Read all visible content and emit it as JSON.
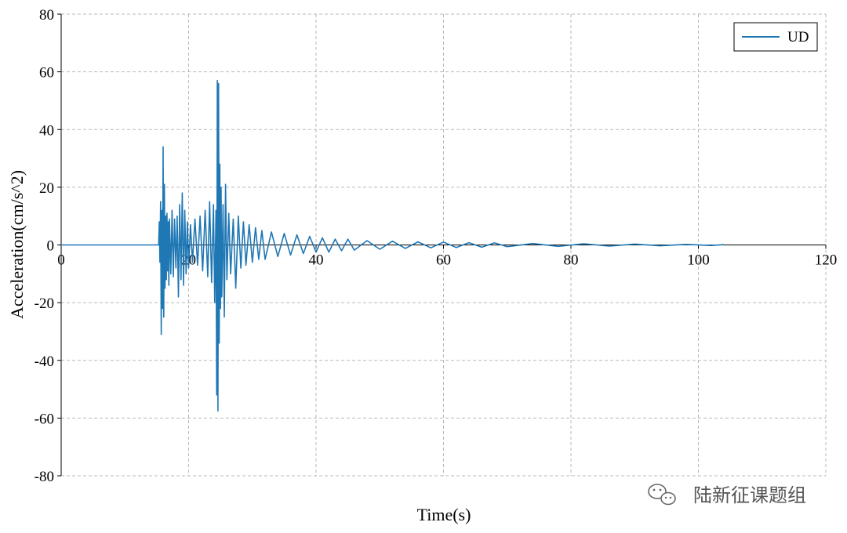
{
  "chart_data": {
    "type": "line",
    "title": "",
    "xlabel": "Time(s)",
    "ylabel": "Acceleration(cm/s^2)",
    "xlim": [
      0,
      120
    ],
    "ylim": [
      -80,
      80
    ],
    "xticks": [
      "0",
      "20",
      "40",
      "60",
      "80",
      "100",
      "120"
    ],
    "yticks": [
      "80",
      "60",
      "40",
      "20",
      "0",
      "-20",
      "-40",
      "-60",
      "-80"
    ],
    "grid": true,
    "legend_position": "top-right",
    "series": [
      {
        "name": "UD",
        "color": "#1f77b4",
        "x": [
          0,
          15.3,
          15.4,
          15.5,
          15.6,
          15.7,
          15.8,
          15.9,
          16.0,
          16.1,
          16.2,
          16.3,
          16.4,
          16.5,
          16.6,
          16.7,
          16.8,
          16.9,
          17.0,
          17.2,
          17.4,
          17.6,
          17.8,
          18.0,
          18.2,
          18.4,
          18.6,
          18.8,
          19.0,
          19.2,
          19.4,
          19.6,
          19.8,
          20.0,
          20.3,
          20.6,
          21.0,
          21.4,
          21.8,
          22.2,
          22.6,
          23.0,
          23.3,
          23.6,
          23.9,
          24.1,
          24.3,
          24.4,
          24.5,
          24.6,
          24.7,
          24.8,
          24.9,
          25.0,
          25.1,
          25.2,
          25.4,
          25.6,
          25.8,
          26.0,
          26.3,
          26.6,
          27.0,
          27.4,
          27.8,
          28.2,
          28.6,
          29.0,
          29.5,
          30.0,
          30.5,
          31.0,
          31.5,
          32.0,
          33.0,
          34.0,
          35.0,
          36.0,
          37.0,
          38.0,
          39.0,
          40.0,
          41.0,
          42.0,
          43.0,
          44.0,
          45.0,
          46.0,
          48.0,
          50.0,
          52.0,
          54.0,
          56.0,
          58.0,
          60.0,
          62.0,
          64.0,
          66.0,
          68.0,
          70.0,
          74.0,
          78.0,
          82.0,
          86.0,
          90.0,
          94.0,
          98.0,
          102.0,
          104.0
        ],
        "y": [
          0,
          0,
          8,
          -6,
          15,
          -31,
          12,
          -22,
          34,
          -25,
          21,
          -15,
          10,
          -12,
          11,
          -9,
          8,
          -14,
          9,
          -10,
          12,
          -11,
          9,
          -8,
          10,
          -18,
          14,
          -12,
          18,
          -14,
          12,
          -10,
          8,
          -8,
          7,
          -6,
          9,
          -7,
          10,
          -9,
          12,
          -11,
          15,
          -13,
          14,
          -20,
          12,
          -52,
          57,
          -57.5,
          56,
          -34,
          28,
          -22,
          20,
          -18,
          14,
          -25,
          21,
          -12,
          11,
          -10,
          9,
          -15,
          10,
          -8,
          8,
          -7,
          7,
          -6,
          6,
          -5,
          5,
          -5,
          4.5,
          -4,
          4,
          -3.5,
          3.5,
          -3,
          3,
          -2.5,
          2.5,
          -2.5,
          2,
          -2,
          2,
          -1.8,
          1.5,
          -1.5,
          1.3,
          -1.2,
          1.1,
          -1,
          1,
          -0.9,
          0.8,
          -0.8,
          0.7,
          -0.6,
          0.5,
          -0.5,
          0.4,
          -0.4,
          0.3,
          -0.3,
          0.2,
          -0.2,
          0.1
        ]
      }
    ]
  },
  "watermark": {
    "text": "陆新征课题组",
    "icon": "wechat-icon"
  }
}
